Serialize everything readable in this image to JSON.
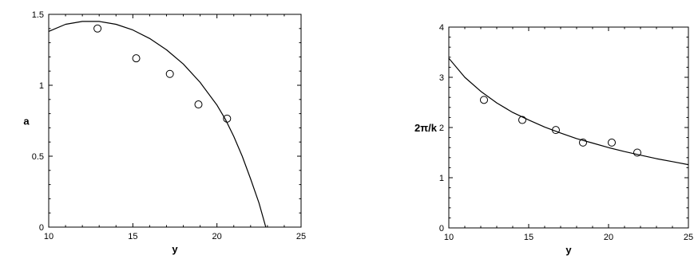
{
  "chart_data": [
    {
      "type": "scatter",
      "xlabel": "y",
      "ylabel": "a",
      "xlim": [
        10,
        25
      ],
      "ylim": [
        0,
        1.5
      ],
      "xticks": [
        "10",
        "15",
        "20",
        "25"
      ],
      "yticks": [
        "0",
        "0.5",
        "1",
        "1.5"
      ],
      "grid": false,
      "series": [
        {
          "kind": "points",
          "marker": "open-circle",
          "x": [
            12.9,
            15.2,
            17.2,
            18.9,
            20.6
          ],
          "y": [
            1.4,
            1.19,
            1.08,
            0.865,
            0.765
          ]
        },
        {
          "kind": "fit-curve",
          "x": [
            10,
            11,
            12,
            12.6,
            13,
            14,
            15,
            16,
            17,
            18,
            19,
            20,
            20.5,
            21,
            21.5,
            22,
            22.5,
            22.9
          ],
          "y": [
            1.38,
            1.43,
            1.45,
            1.45,
            1.45,
            1.43,
            1.39,
            1.33,
            1.25,
            1.15,
            1.02,
            0.86,
            0.76,
            0.64,
            0.5,
            0.34,
            0.17,
            0.0
          ]
        }
      ]
    },
    {
      "type": "scatter",
      "xlabel": "y",
      "ylabel": "2π/k",
      "xlim": [
        10,
        25
      ],
      "ylim": [
        0,
        4
      ],
      "xticks": [
        "10",
        "15",
        "20",
        "25"
      ],
      "yticks": [
        "0",
        "1",
        "2",
        "3",
        "4"
      ],
      "grid": false,
      "series": [
        {
          "kind": "points",
          "marker": "open-circle",
          "x": [
            12.2,
            14.6,
            16.7,
            18.4,
            20.2,
            21.8
          ],
          "y": [
            2.55,
            2.15,
            1.95,
            1.7,
            1.7,
            1.5
          ]
        },
        {
          "kind": "fit-curve",
          "x": [
            10,
            11,
            12,
            13,
            14,
            15,
            16,
            17,
            18,
            19,
            20,
            21,
            22,
            23,
            24,
            25
          ],
          "y": [
            3.38,
            3.0,
            2.72,
            2.49,
            2.3,
            2.15,
            2.01,
            1.89,
            1.78,
            1.69,
            1.6,
            1.52,
            1.45,
            1.38,
            1.32,
            1.26
          ]
        }
      ]
    }
  ]
}
